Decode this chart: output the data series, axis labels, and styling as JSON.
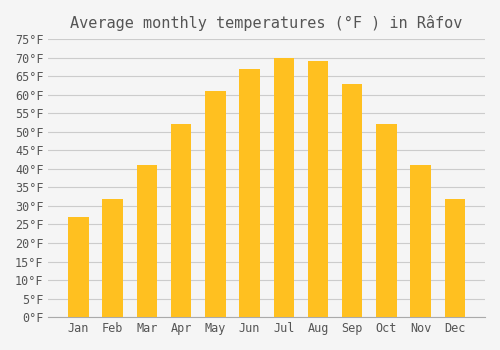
{
  "title": "Average monthly temperatures (°F ) in Râfov",
  "months": [
    "Jan",
    "Feb",
    "Mar",
    "Apr",
    "May",
    "Jun",
    "Jul",
    "Aug",
    "Sep",
    "Oct",
    "Nov",
    "Dec"
  ],
  "values": [
    27,
    32,
    41,
    52,
    61,
    67,
    70,
    69,
    63,
    52,
    41,
    32
  ],
  "bar_color": "#FFC020",
  "background_color": "#F5F5F5",
  "grid_color": "#CCCCCC",
  "text_color": "#555555",
  "ylim": [
    0,
    75
  ],
  "yticks": [
    0,
    5,
    10,
    15,
    20,
    25,
    30,
    35,
    40,
    45,
    50,
    55,
    60,
    65,
    70,
    75
  ],
  "title_fontsize": 11,
  "tick_fontsize": 8.5
}
